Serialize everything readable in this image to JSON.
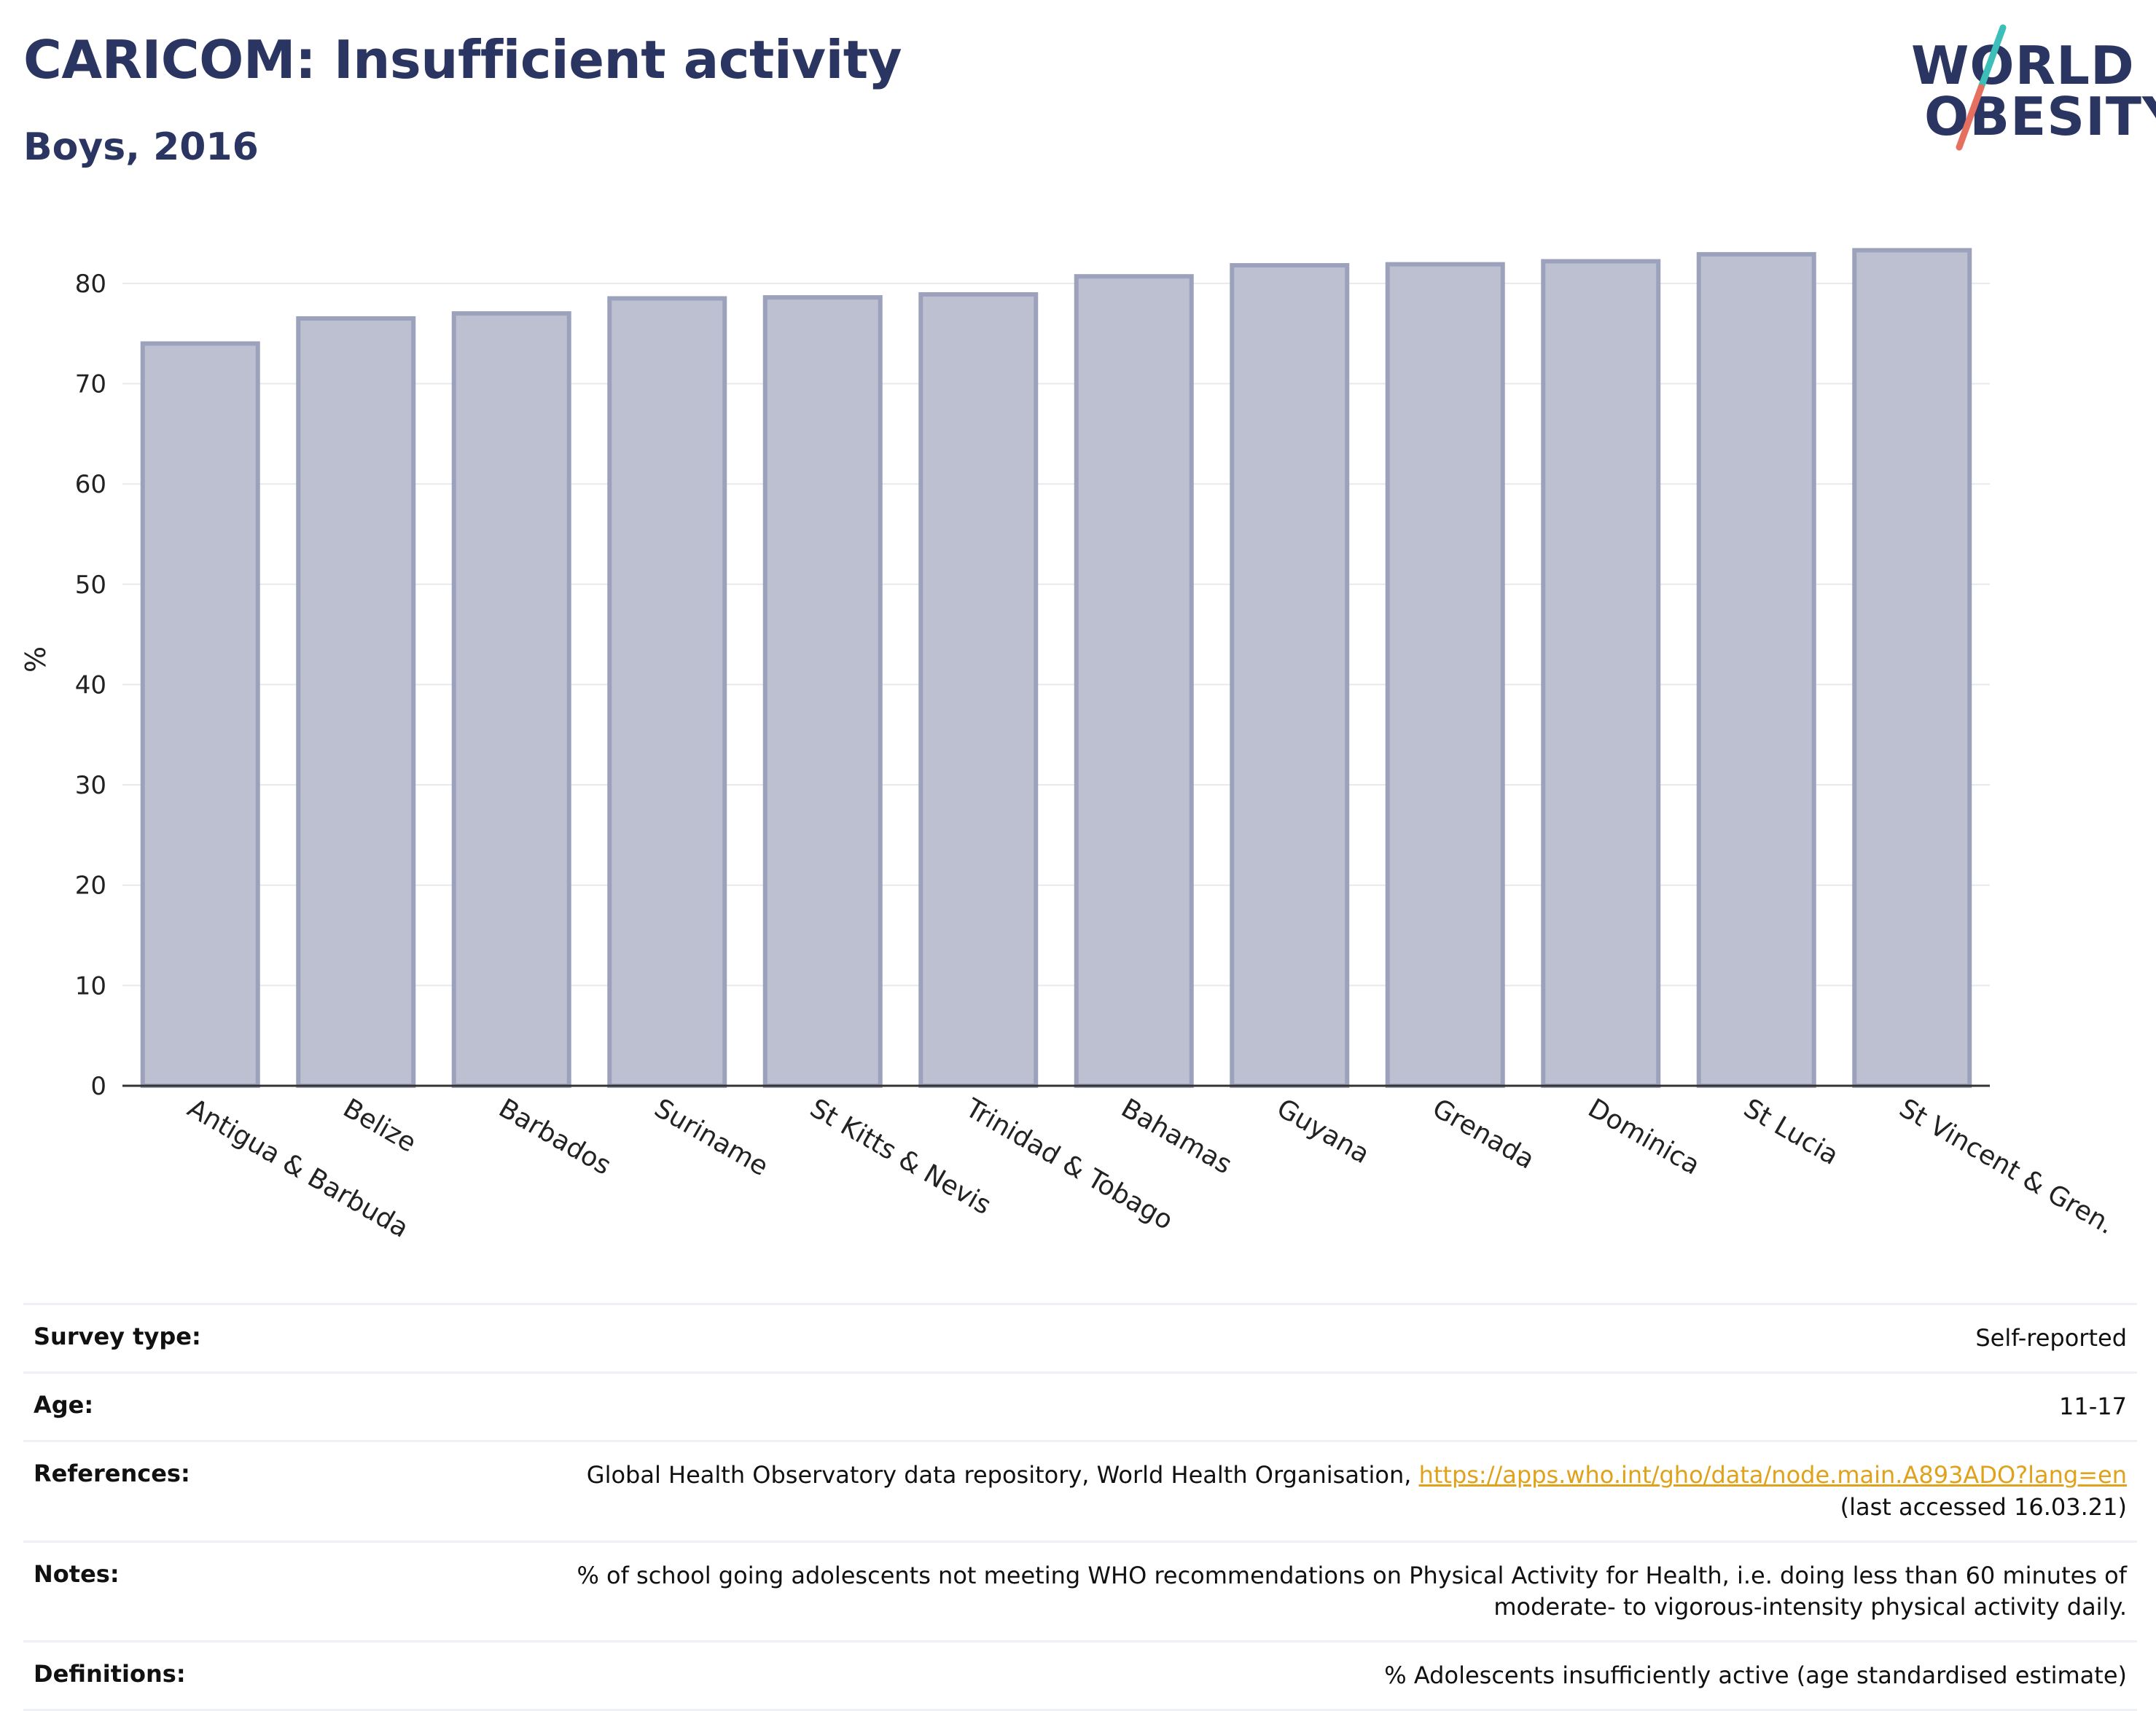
{
  "header": {
    "title": "CARICOM: Insufficient activity",
    "subtitle": "Boys, 2016"
  },
  "logo": {
    "line1": "WORLD",
    "line2": "OBESITY",
    "stroke_teal": "#3bbfb8",
    "stroke_coral": "#e5705f"
  },
  "colors": {
    "bar_fill": "#bcc0d0",
    "bar_stroke": "#9ca2bb",
    "text_dark": "#2b3561",
    "link": "#e0a21b"
  },
  "chart_data": {
    "type": "bar",
    "title": "",
    "xlabel": "",
    "ylabel": "%",
    "ylim": [
      0,
      85
    ],
    "yticks": [
      0,
      10,
      20,
      30,
      40,
      50,
      60,
      70,
      80
    ],
    "grid": true,
    "categories": [
      "Antigua & Barbuda",
      "Belize",
      "Barbados",
      "Suriname",
      "St Kitts & Nevis",
      "Trinidad & Tobago",
      "Bahamas",
      "Guyana",
      "Grenada",
      "Dominica",
      "St Lucia",
      "St Vincent & Gren."
    ],
    "values": [
      74.0,
      76.5,
      77.0,
      78.5,
      78.6,
      78.9,
      80.7,
      81.8,
      81.9,
      82.2,
      82.9,
      83.3
    ]
  },
  "meta": {
    "survey_type": {
      "label": "Survey type:",
      "value": "Self-reported"
    },
    "age": {
      "label": "Age:",
      "value": "11-17"
    },
    "references": {
      "label": "References:",
      "text": "Global Health Observatory data repository, World Health Organisation, ",
      "link": "https://apps.who.int/gho/data/node.main.A893ADO?lang=en",
      "suffix": "(last accessed 16.03.21)"
    },
    "notes": {
      "label": "Notes:",
      "line1": "% of school going adolescents not meeting WHO recommendations on Physical Activity for Health, i.e. doing less than 60 minutes of",
      "line2": "moderate- to vigorous-intensity physical activity daily."
    },
    "definitions": {
      "label": "Definitions:",
      "value": "% Adolescents insufficiently active (age standardised estimate)"
    }
  }
}
